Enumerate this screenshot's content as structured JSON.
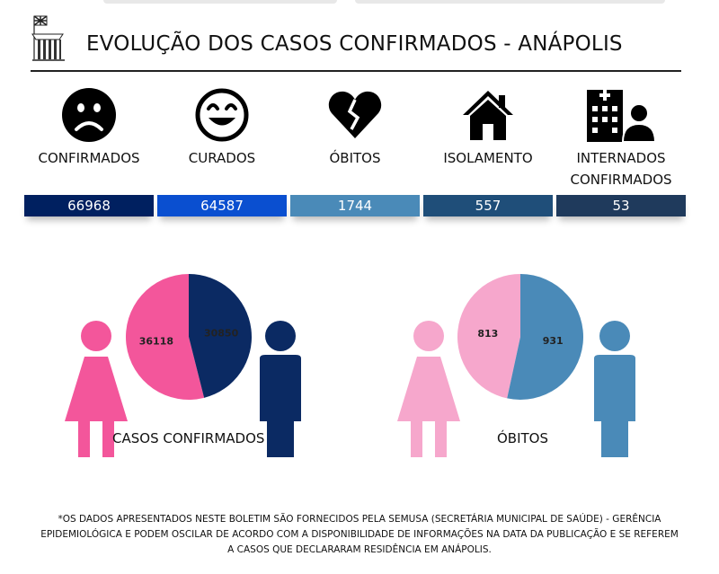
{
  "header": {
    "title": "EVOLUÇÃO DOS CASOS CONFIRMADOS - ANÁPOLIS"
  },
  "stats": [
    {
      "label": "CONFIRMADOS",
      "value": "66968",
      "icon": "sad-face-icon",
      "color": "#002060"
    },
    {
      "label": "CURADOS",
      "value": "64587",
      "icon": "smile-face-icon",
      "color": "#0a4fd0"
    },
    {
      "label": "ÓBITOS",
      "value": "1744",
      "icon": "broken-heart-icon",
      "color": "#4a8ab8"
    },
    {
      "label": "ISOLAMENTO",
      "value": "557",
      "icon": "house-icon",
      "color": "#1f4e79"
    },
    {
      "label": "INTERNADOS CONFIRMADOS",
      "value": "53",
      "icon": "hospital-icon",
      "color": "#1f3a5c"
    }
  ],
  "chart_data": [
    {
      "type": "pie",
      "title": "CASOS CONFIRMADOS",
      "categories": [
        "Feminino",
        "Masculino"
      ],
      "values": [
        36118,
        30850
      ],
      "colors": [
        "#f3569b",
        "#0b2a63"
      ]
    },
    {
      "type": "pie",
      "title": "ÓBITOS",
      "categories": [
        "Feminino",
        "Masculino"
      ],
      "values": [
        813,
        931
      ],
      "colors": [
        "#f6a7cc",
        "#4a8ab8"
      ]
    }
  ],
  "footer": {
    "note": "*OS DADOS APRESENTADOS NESTE BOLETIM SÃO FORNECIDOS PELA SEMUSA (SECRETÁRIA MUNICIPAL DE SAÚDE) - GERÊNCIA EPIDEMIOLÓGICA E PODEM OSCILAR DE ACORDO COM A DISPONIBILIDADE DE INFORMAÇÕES NA DATA DA PUBLICAÇÃO E SE REFEREM A CASOS QUE DECLARARAM RESIDÊNCIA EM ANÁPOLIS."
  }
}
